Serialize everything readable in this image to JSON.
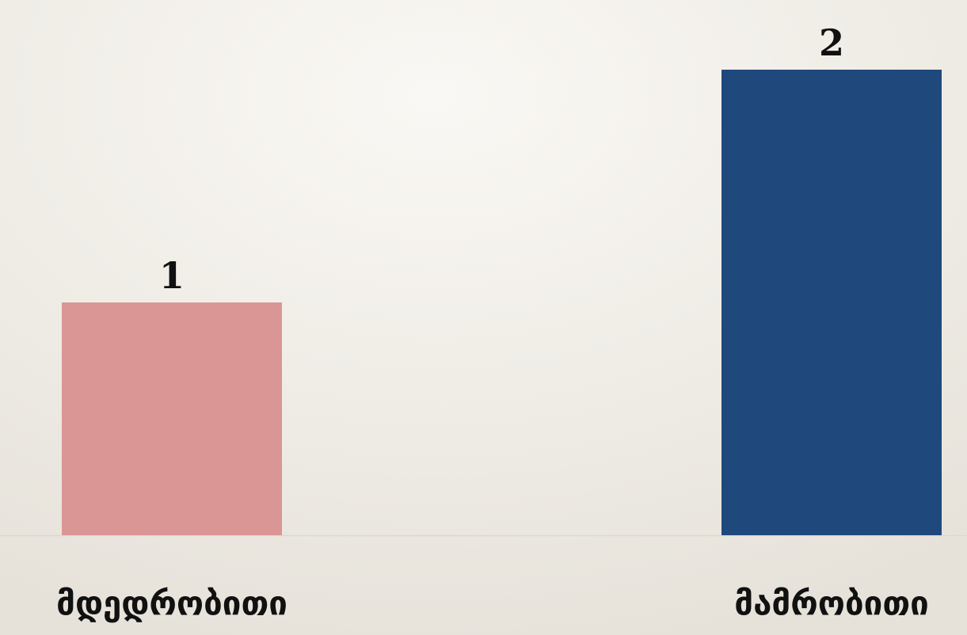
{
  "chart_data": {
    "type": "bar",
    "categories": [
      "მდედრობითი",
      "მამრობითი"
    ],
    "values": [
      1,
      2
    ],
    "colors": [
      "#da9694",
      "#1f497d"
    ]
  }
}
